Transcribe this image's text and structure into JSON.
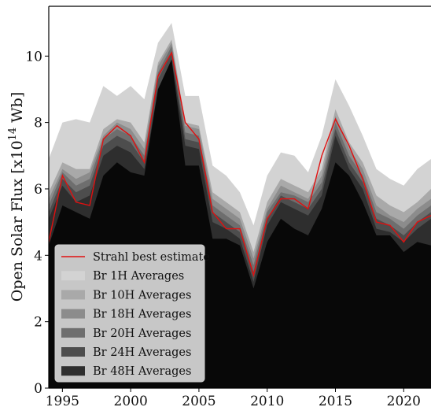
{
  "chart_data": {
    "type": "area",
    "title": "",
    "xlabel": "",
    "ylabel": "Open Solar Flux [x10",
    "ylabel_exp": "14",
    "ylabel_unit": " Wb]",
    "xlim": [
      1994,
      2022
    ],
    "ylim": [
      0,
      11.5
    ],
    "xticks": [
      1995,
      2000,
      2005,
      2010,
      2015,
      2020
    ],
    "yticks": [
      0,
      2,
      4,
      6,
      8,
      10
    ],
    "grid": false,
    "legend_position": "lower-left",
    "x": [
      1994,
      1995,
      1996,
      1997,
      1998,
      1999,
      2000,
      2001,
      2002,
      2003,
      2004,
      2005,
      2006,
      2007,
      2008,
      2009,
      2010,
      2011,
      2012,
      2013,
      2014,
      2015,
      2016,
      2017,
      2018,
      2019,
      2020,
      2021,
      2022
    ],
    "series": [
      {
        "name": "Br 1H Averages",
        "color": "#d3d3d3",
        "values": [
          6.9,
          8.0,
          8.1,
          8.0,
          9.1,
          8.8,
          9.1,
          8.7,
          10.4,
          11.0,
          8.8,
          8.8,
          6.7,
          6.4,
          5.9,
          4.9,
          6.4,
          7.1,
          7.0,
          6.5,
          7.6,
          9.3,
          8.5,
          7.6,
          6.6,
          6.3,
          6.1,
          6.6,
          6.9
        ]
      },
      {
        "name": "Br 10H Averages",
        "color": "#a9a9a9",
        "values": [
          5.9,
          6.8,
          6.6,
          6.6,
          7.8,
          8.1,
          8.0,
          7.4,
          9.8,
          10.5,
          8.0,
          7.9,
          5.9,
          5.6,
          5.3,
          4.1,
          5.6,
          6.3,
          6.1,
          5.9,
          6.6,
          8.4,
          7.4,
          6.8,
          5.8,
          5.5,
          5.3,
          5.6,
          6.0
        ]
      },
      {
        "name": "Br 18H Averages",
        "color": "#8c8c8c",
        "values": [
          5.7,
          6.6,
          6.3,
          6.5,
          7.6,
          8.0,
          7.8,
          7.2,
          9.7,
          10.4,
          7.9,
          7.8,
          5.7,
          5.4,
          5.1,
          3.9,
          5.4,
          6.1,
          5.9,
          5.7,
          6.4,
          8.2,
          7.2,
          6.6,
          5.5,
          5.2,
          5.0,
          5.4,
          5.7
        ]
      },
      {
        "name": "Br 20H Averages",
        "color": "#6e6e6e",
        "values": [
          5.5,
          6.5,
          6.1,
          6.3,
          7.5,
          7.8,
          7.6,
          7.0,
          9.5,
          10.3,
          7.7,
          7.6,
          5.5,
          5.2,
          4.9,
          3.7,
          5.3,
          5.9,
          5.8,
          5.6,
          6.2,
          8.0,
          7.0,
          6.4,
          5.3,
          5.1,
          4.8,
          5.2,
          5.5
        ]
      },
      {
        "name": "Br 24H Averages",
        "color": "#4d4d4d",
        "values": [
          5.3,
          6.3,
          5.9,
          6.1,
          7.3,
          7.6,
          7.4,
          6.8,
          9.3,
          10.1,
          7.5,
          7.4,
          5.3,
          5.0,
          4.7,
          3.5,
          5.1,
          5.8,
          5.6,
          5.4,
          6.0,
          7.8,
          6.8,
          6.2,
          5.1,
          4.9,
          4.6,
          5.0,
          5.3
        ]
      },
      {
        "name": "Br 48H Averages",
        "color": "#2e2e2e",
        "values": [
          5.1,
          6.1,
          5.6,
          5.8,
          7.0,
          7.3,
          7.1,
          6.6,
          9.0,
          9.9,
          7.3,
          7.2,
          5.0,
          4.8,
          4.5,
          3.2,
          4.9,
          5.6,
          5.4,
          5.2,
          5.8,
          7.6,
          6.6,
          6.0,
          4.8,
          4.7,
          4.4,
          4.8,
          5.1
        ]
      },
      {
        "name": "",
        "color": "#080808",
        "values": [
          4.3,
          5.5,
          5.3,
          5.1,
          6.4,
          6.8,
          6.5,
          6.4,
          9.0,
          9.9,
          6.7,
          6.7,
          4.5,
          4.5,
          4.3,
          3.0,
          4.4,
          5.1,
          4.8,
          4.6,
          5.4,
          6.8,
          6.4,
          5.6,
          4.6,
          4.6,
          4.1,
          4.4,
          4.3
        ]
      }
    ],
    "best_estimate": {
      "name": "Strahl best estimate",
      "color": "#e01010",
      "values": [
        4.4,
        6.4,
        5.6,
        5.5,
        7.5,
        7.9,
        7.6,
        6.8,
        9.4,
        10.1,
        8.0,
        7.5,
        5.3,
        4.8,
        4.8,
        3.4,
        5.1,
        5.7,
        5.7,
        5.4,
        7.0,
        8.1,
        7.3,
        6.3,
        5.0,
        4.9,
        4.4,
        5.0,
        5.2
      ]
    }
  }
}
